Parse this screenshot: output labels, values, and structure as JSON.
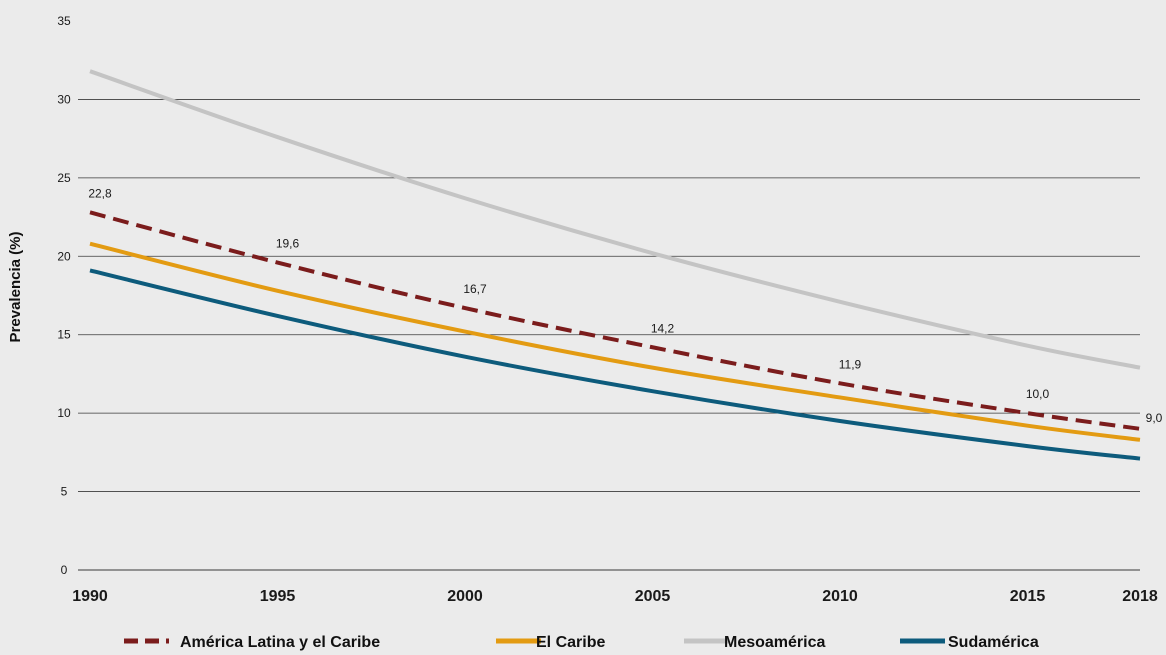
{
  "chart_data": {
    "type": "line",
    "ylabel": "Prevalencia (%)",
    "xlabel": "",
    "x_ticks": [
      "1990",
      "1995",
      "2000",
      "2005",
      "2010",
      "2015",
      "2018"
    ],
    "y_ticks": [
      "0",
      "5",
      "10",
      "15",
      "20",
      "25",
      "30",
      "35"
    ],
    "xlim": [
      1990,
      2018
    ],
    "ylim": [
      0,
      35
    ],
    "grid": "horizontal",
    "legend_position": "bottom",
    "series": [
      {
        "name": "América Latina y el Caribe",
        "color": "#7b1c1c",
        "style": "dashed",
        "x": [
          1990,
          1995,
          2000,
          2005,
          2010,
          2015,
          2018
        ],
        "y": [
          22.8,
          19.6,
          16.7,
          14.2,
          11.9,
          10.0,
          9.0
        ],
        "labels": [
          "22,8",
          "19,6",
          "16,7",
          "14,2",
          "11,9",
          "10,0",
          "9,0"
        ]
      },
      {
        "name": "El Caribe",
        "color": "#e39b12",
        "style": "solid",
        "x": [
          1990,
          1995,
          2000,
          2005,
          2010,
          2015,
          2018
        ],
        "y": [
          20.8,
          17.8,
          15.2,
          12.9,
          11.0,
          9.2,
          8.3
        ]
      },
      {
        "name": "Mesoamérica",
        "color": "#c4c4c4",
        "style": "solid",
        "x": [
          1990,
          1995,
          2000,
          2005,
          2010,
          2015,
          2018
        ],
        "y": [
          31.8,
          27.6,
          23.7,
          20.2,
          17.1,
          14.3,
          12.9
        ]
      },
      {
        "name": "Sudamérica",
        "color": "#0d5b7c",
        "style": "solid",
        "x": [
          1990,
          1995,
          2000,
          2005,
          2010,
          2015,
          2018
        ],
        "y": [
          19.1,
          16.2,
          13.6,
          11.4,
          9.5,
          7.9,
          7.1
        ]
      }
    ]
  }
}
